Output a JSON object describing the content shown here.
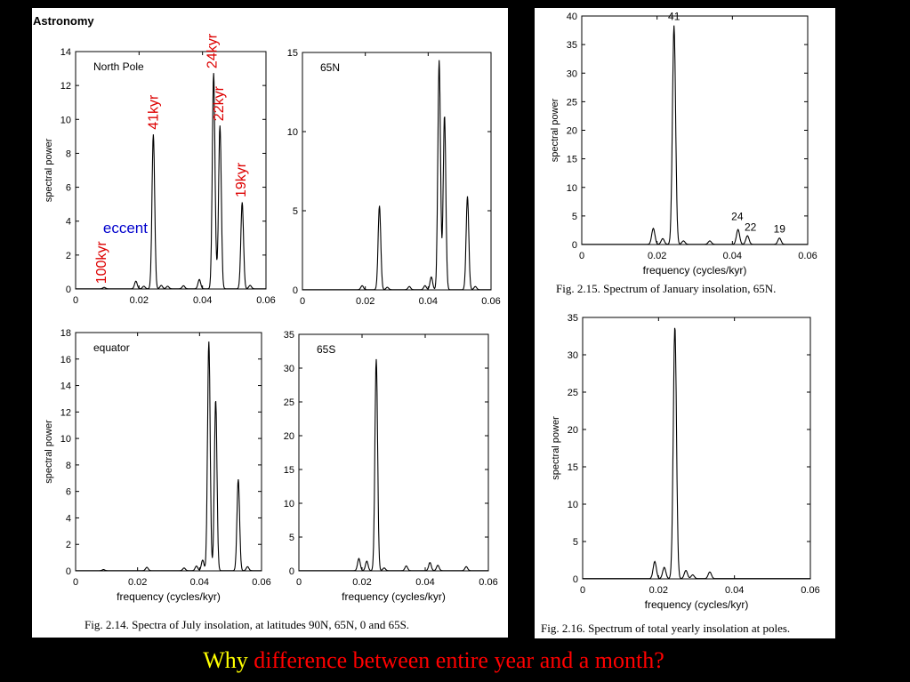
{
  "header": {
    "book_title": "Astronomy"
  },
  "figure_2_14": {
    "caption": "Fig. 2.14. Spectra of July insolation, at latitudes 90N, 65N, 0 and 65S."
  },
  "figure_2_15": {
    "caption": "Fig. 2.15. Spectrum of January insolation, 65N."
  },
  "figure_2_16": {
    "caption": "Fig. 2.16. Spectrum of total yearly insolation at poles."
  },
  "footer": {
    "question_prefix": "Why",
    "question_rest": " difference between entire year and a month?",
    "prefix_color": "#ffff00",
    "rest_color": "#ff0000"
  },
  "chart_data": [
    {
      "id": "north-pole",
      "type": "line",
      "title": "North Pole",
      "xlabel": "",
      "ylabel": "spectral power",
      "xlim": [
        0,
        0.06
      ],
      "ylim": [
        0,
        14
      ],
      "xticks": [
        0,
        0.02,
        0.04,
        0.06
      ],
      "xtick_labels": [
        "0",
        "0.02",
        "0.04",
        "0.06"
      ],
      "yticks": [
        0,
        2,
        4,
        6,
        8,
        10,
        12,
        14
      ],
      "peaks": [
        [
          0.009,
          0.08
        ],
        [
          0.019,
          0.45
        ],
        [
          0.0215,
          0.15
        ],
        [
          0.0245,
          9.1
        ],
        [
          0.027,
          0.2
        ],
        [
          0.029,
          0.15
        ],
        [
          0.034,
          0.18
        ],
        [
          0.039,
          0.55
        ],
        [
          0.0435,
          12.7
        ],
        [
          0.0445,
          0.4
        ],
        [
          0.0455,
          9.6
        ],
        [
          0.0525,
          5.1
        ],
        [
          0.055,
          0.2
        ]
      ],
      "annotations": [
        {
          "text": "100kyr",
          "x": 0.0095,
          "y": 0.3,
          "color": "#dd0000",
          "rotate": true
        },
        {
          "text": "41kyr",
          "x": 0.026,
          "y": 9.4,
          "color": "#dd0000",
          "rotate": true
        },
        {
          "text": "24kyr",
          "x": 0.0445,
          "y": 13.0,
          "color": "#dd0000",
          "rotate": true
        },
        {
          "text": "22kyr",
          "x": 0.0465,
          "y": 9.9,
          "color": "#dd0000",
          "rotate": true
        },
        {
          "text": "19kyr",
          "x": 0.0535,
          "y": 5.4,
          "color": "#dd0000",
          "rotate": true
        },
        {
          "text": "eccent",
          "x": 0.0095,
          "y": 3.3,
          "color": "#0000cc",
          "rotate": false
        }
      ]
    },
    {
      "id": "65n-july",
      "type": "line",
      "title": "65N",
      "xlabel": "",
      "ylabel": "",
      "xlim": [
        0,
        0.06
      ],
      "ylim": [
        0,
        15
      ],
      "xticks": [
        0,
        0.02,
        0.04,
        0.06
      ],
      "xtick_labels": [
        "0",
        "0.02",
        "0.04",
        "0.06"
      ],
      "yticks": [
        0,
        5,
        10,
        15
      ],
      "peaks": [
        [
          0.019,
          0.25
        ],
        [
          0.0245,
          5.3
        ],
        [
          0.027,
          0.15
        ],
        [
          0.034,
          0.2
        ],
        [
          0.039,
          0.25
        ],
        [
          0.041,
          0.8
        ],
        [
          0.0435,
          14.5
        ],
        [
          0.0452,
          11.0
        ],
        [
          0.0525,
          5.9
        ],
        [
          0.055,
          0.2
        ]
      ],
      "annotations": []
    },
    {
      "id": "equator",
      "type": "line",
      "title": "equator",
      "xlabel": "frequency (cycles/kyr)",
      "ylabel": "spectral power",
      "xlim": [
        0,
        0.06
      ],
      "ylim": [
        0,
        18
      ],
      "xticks": [
        0,
        0.02,
        0.04,
        0.06
      ],
      "xtick_labels": [
        "0",
        "0.02",
        "0.04",
        "0.06"
      ],
      "yticks": [
        0,
        2,
        4,
        6,
        8,
        10,
        12,
        14,
        16,
        18
      ],
      "peaks": [
        [
          0.009,
          0.08
        ],
        [
          0.023,
          0.25
        ],
        [
          0.035,
          0.2
        ],
        [
          0.039,
          0.35
        ],
        [
          0.041,
          0.8
        ],
        [
          0.043,
          17.3
        ],
        [
          0.0452,
          12.9
        ],
        [
          0.0525,
          6.9
        ],
        [
          0.0555,
          0.3
        ]
      ],
      "annotations": []
    },
    {
      "id": "65s",
      "type": "line",
      "title": "65S",
      "xlabel": "frequency (cycles/kyr)",
      "ylabel": "",
      "xlim": [
        0,
        0.06
      ],
      "ylim": [
        0,
        35
      ],
      "xticks": [
        0,
        0.02,
        0.04,
        0.06
      ],
      "xtick_labels": [
        "0",
        "0.02",
        "0.04",
        "0.06"
      ],
      "yticks": [
        0,
        5,
        10,
        15,
        20,
        25,
        30,
        35
      ],
      "peaks": [
        [
          0.019,
          1.8
        ],
        [
          0.0215,
          1.4
        ],
        [
          0.0245,
          31.3
        ],
        [
          0.027,
          0.4
        ],
        [
          0.034,
          0.7
        ],
        [
          0.0415,
          1.2
        ],
        [
          0.044,
          0.8
        ],
        [
          0.053,
          0.6
        ]
      ],
      "annotations": []
    },
    {
      "id": "january-65n",
      "type": "line",
      "title": "",
      "xlabel": "frequency (cycles/kyr)",
      "ylabel": "spectral power",
      "xlim": [
        0,
        0.06
      ],
      "ylim": [
        0,
        40
      ],
      "xticks": [
        0,
        0.02,
        0.04,
        0.06
      ],
      "xtick_labels": [
        "0",
        "0.02",
        "0.04",
        "0.06"
      ],
      "yticks": [
        0,
        5,
        10,
        15,
        20,
        25,
        30,
        35,
        40
      ],
      "peaks": [
        [
          0.019,
          2.8
        ],
        [
          0.0215,
          1.0
        ],
        [
          0.0245,
          38.3
        ],
        [
          0.027,
          0.6
        ],
        [
          0.034,
          0.6
        ],
        [
          0.0415,
          2.6
        ],
        [
          0.044,
          1.5
        ],
        [
          0.0525,
          1.1
        ]
      ],
      "annotations": [
        {
          "text": "41",
          "x": 0.0245,
          "y": 39.3,
          "color": "#000000",
          "rotate": false
        },
        {
          "text": "24",
          "x": 0.0413,
          "y": 4.3,
          "color": "#000000",
          "rotate": false
        },
        {
          "text": "22",
          "x": 0.0448,
          "y": 2.4,
          "color": "#000000",
          "rotate": false
        },
        {
          "text": "19",
          "x": 0.0525,
          "y": 2.1,
          "color": "#000000",
          "rotate": false
        }
      ]
    },
    {
      "id": "yearly-poles",
      "type": "line",
      "title": "",
      "xlabel": "frequency (cycles/kyr)",
      "ylabel": "spectral power",
      "xlim": [
        0,
        0.06
      ],
      "ylim": [
        0,
        35
      ],
      "xticks": [
        0,
        0.02,
        0.04,
        0.06
      ],
      "xtick_labels": [
        "0",
        "0.02",
        "0.04",
        "0.06"
      ],
      "yticks": [
        0,
        5,
        10,
        15,
        20,
        25,
        30,
        35
      ],
      "peaks": [
        [
          0.019,
          2.3
        ],
        [
          0.0215,
          1.5
        ],
        [
          0.0243,
          33.8
        ],
        [
          0.0272,
          1.1
        ],
        [
          0.029,
          0.5
        ],
        [
          0.0335,
          0.9
        ]
      ],
      "annotations": []
    }
  ]
}
